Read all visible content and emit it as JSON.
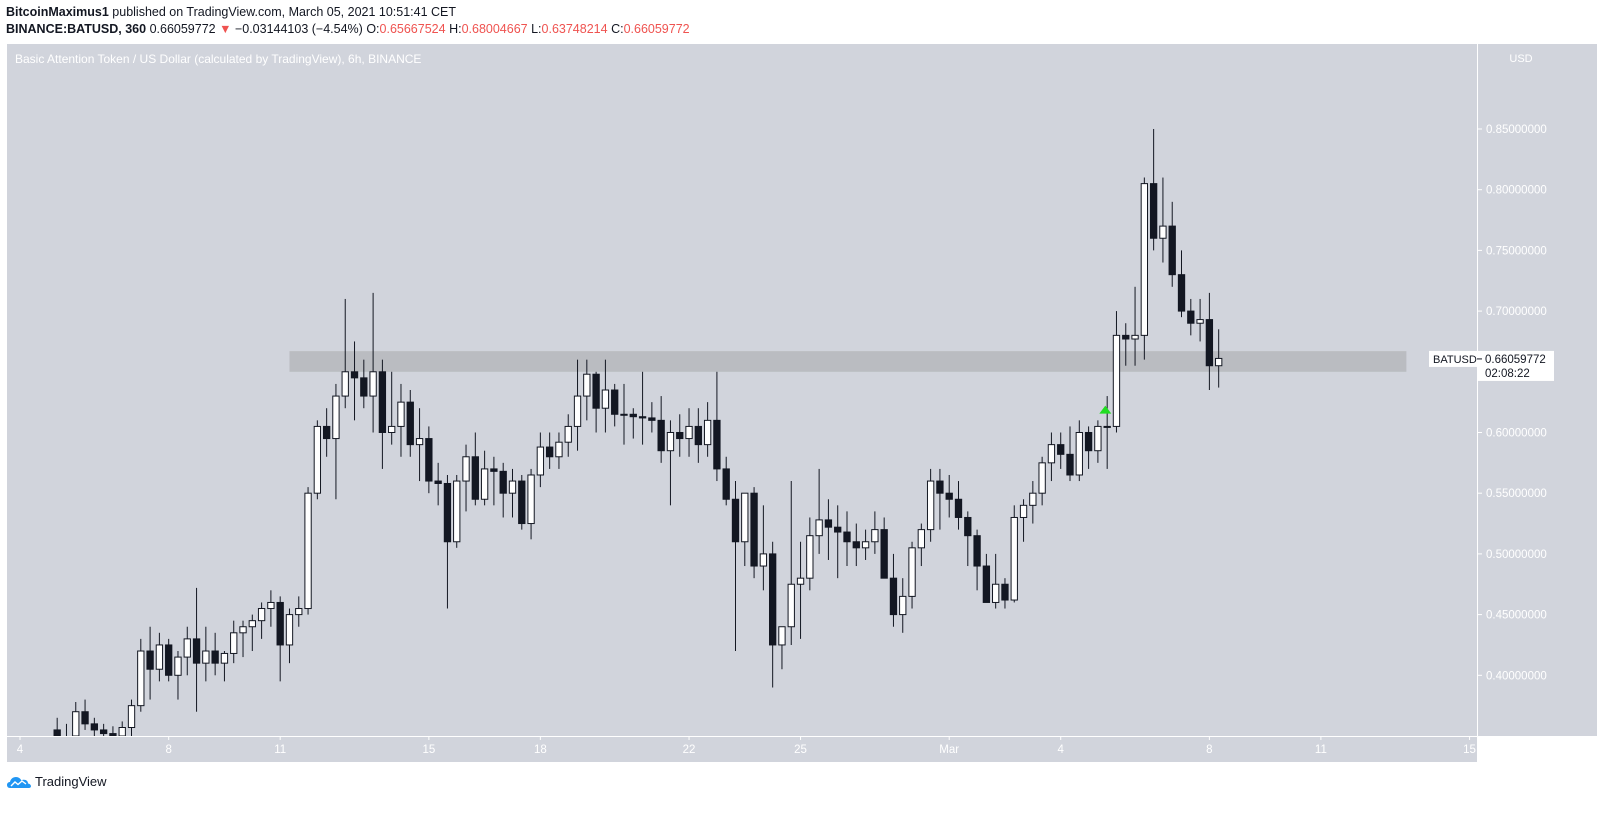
{
  "header": {
    "author": "BitcoinMaximus1",
    "published_text": "published on TradingView.com, March 05, 2021 10:51:41 CET",
    "symbol_full": "BINANCE:BATUSD, 360",
    "last_price": "0.66059772",
    "change_arrow": "▼",
    "change": "−0.03144103 (−4.54%)",
    "open_label": "O:",
    "open": "0.65667524",
    "high_label": "H:",
    "high": "0.68004667",
    "low_label": "L:",
    "low": "0.63748214",
    "close_label": "C:",
    "close": "0.66059772"
  },
  "footer": {
    "brand": "TradingView"
  },
  "colors": {
    "plot_bg": "#d1d4dc",
    "zone": "#b8babf",
    "up_body": "#ffffff",
    "down_body": "#131722",
    "wick": "#131722",
    "marker": "#22dd22",
    "negative": "#ef5350"
  },
  "chart_data": {
    "type": "candlestick",
    "title": "Basic Attention Token / US Dollar (calculated by TradingView), 6h, BINANCE",
    "currency": "USD",
    "timeframe": "6h",
    "ylim": [
      0.35,
      0.92
    ],
    "y_ticks": [
      0.4,
      0.45,
      0.5,
      0.55,
      0.6,
      0.65,
      0.7,
      0.75,
      0.8,
      0.85
    ],
    "y_tick_labels": [
      "0.40000000",
      "0.45000000",
      "0.50000000",
      "0.55000000",
      "0.60000000",
      "0.65000000",
      "0.70000000",
      "0.75000000",
      "0.80000000",
      "0.85000000"
    ],
    "x_ticks": [
      {
        "day": 4,
        "label": "4"
      },
      {
        "day": 8,
        "label": "8"
      },
      {
        "day": 11,
        "label": "11"
      },
      {
        "day": 15,
        "label": "15"
      },
      {
        "day": 18,
        "label": "18"
      },
      {
        "day": 22,
        "label": "22"
      },
      {
        "day": 25,
        "label": "25"
      },
      {
        "day": 29,
        "label": "Mar"
      },
      {
        "day": 32,
        "label": "4"
      },
      {
        "day": 36,
        "label": "8"
      },
      {
        "day": 39,
        "label": "11"
      },
      {
        "day": 43,
        "label": "15"
      }
    ],
    "x_range_days": [
      3.65,
      43.2
    ],
    "first_candle_day": 5.0,
    "candle_interval_days": 0.25,
    "candles": [
      [
        0.355,
        0.365,
        0.345,
        0.35
      ],
      [
        0.35,
        0.36,
        0.34,
        0.345
      ],
      [
        0.345,
        0.378,
        0.34,
        0.37
      ],
      [
        0.37,
        0.38,
        0.355,
        0.36
      ],
      [
        0.36,
        0.365,
        0.345,
        0.355
      ],
      [
        0.355,
        0.36,
        0.348,
        0.352
      ],
      [
        0.352,
        0.358,
        0.345,
        0.35
      ],
      [
        0.35,
        0.362,
        0.34,
        0.357
      ],
      [
        0.357,
        0.38,
        0.35,
        0.375
      ],
      [
        0.375,
        0.43,
        0.37,
        0.42
      ],
      [
        0.42,
        0.44,
        0.38,
        0.405
      ],
      [
        0.405,
        0.435,
        0.395,
        0.425
      ],
      [
        0.425,
        0.43,
        0.395,
        0.4
      ],
      [
        0.4,
        0.42,
        0.38,
        0.415
      ],
      [
        0.415,
        0.44,
        0.4,
        0.43
      ],
      [
        0.43,
        0.472,
        0.37,
        0.41
      ],
      [
        0.41,
        0.44,
        0.395,
        0.42
      ],
      [
        0.42,
        0.435,
        0.4,
        0.41
      ],
      [
        0.41,
        0.42,
        0.395,
        0.418
      ],
      [
        0.418,
        0.445,
        0.41,
        0.435
      ],
      [
        0.435,
        0.445,
        0.415,
        0.44
      ],
      [
        0.44,
        0.45,
        0.42,
        0.445
      ],
      [
        0.445,
        0.46,
        0.43,
        0.455
      ],
      [
        0.455,
        0.47,
        0.44,
        0.46
      ],
      [
        0.46,
        0.465,
        0.395,
        0.425
      ],
      [
        0.425,
        0.455,
        0.41,
        0.45
      ],
      [
        0.45,
        0.465,
        0.44,
        0.455
      ],
      [
        0.455,
        0.555,
        0.45,
        0.55
      ],
      [
        0.55,
        0.61,
        0.545,
        0.605
      ],
      [
        0.605,
        0.62,
        0.58,
        0.595
      ],
      [
        0.595,
        0.64,
        0.545,
        0.63
      ],
      [
        0.63,
        0.71,
        0.62,
        0.65
      ],
      [
        0.65,
        0.675,
        0.61,
        0.645
      ],
      [
        0.645,
        0.66,
        0.62,
        0.63
      ],
      [
        0.63,
        0.715,
        0.6,
        0.65
      ],
      [
        0.65,
        0.66,
        0.57,
        0.6
      ],
      [
        0.6,
        0.65,
        0.59,
        0.605
      ],
      [
        0.605,
        0.64,
        0.58,
        0.625
      ],
      [
        0.625,
        0.635,
        0.58,
        0.59
      ],
      [
        0.59,
        0.62,
        0.56,
        0.595
      ],
      [
        0.595,
        0.605,
        0.55,
        0.56
      ],
      [
        0.56,
        0.575,
        0.54,
        0.558
      ],
      [
        0.558,
        0.565,
        0.455,
        0.51
      ],
      [
        0.51,
        0.565,
        0.505,
        0.56
      ],
      [
        0.56,
        0.59,
        0.535,
        0.58
      ],
      [
        0.58,
        0.6,
        0.54,
        0.545
      ],
      [
        0.545,
        0.585,
        0.54,
        0.57
      ],
      [
        0.57,
        0.58,
        0.54,
        0.568
      ],
      [
        0.568,
        0.575,
        0.53,
        0.55
      ],
      [
        0.55,
        0.57,
        0.53,
        0.56
      ],
      [
        0.56,
        0.565,
        0.52,
        0.525
      ],
      [
        0.525,
        0.57,
        0.512,
        0.565
      ],
      [
        0.565,
        0.6,
        0.555,
        0.588
      ],
      [
        0.588,
        0.6,
        0.57,
        0.58
      ],
      [
        0.58,
        0.6,
        0.57,
        0.592
      ],
      [
        0.592,
        0.615,
        0.58,
        0.605
      ],
      [
        0.605,
        0.66,
        0.585,
        0.63
      ],
      [
        0.63,
        0.66,
        0.61,
        0.648
      ],
      [
        0.648,
        0.65,
        0.6,
        0.62
      ],
      [
        0.62,
        0.66,
        0.6,
        0.635
      ],
      [
        0.635,
        0.64,
        0.605,
        0.615
      ],
      [
        0.615,
        0.64,
        0.59,
        0.615
      ],
      [
        0.615,
        0.62,
        0.595,
        0.613
      ],
      [
        0.613,
        0.65,
        0.59,
        0.612
      ],
      [
        0.612,
        0.625,
        0.6,
        0.61
      ],
      [
        0.61,
        0.63,
        0.575,
        0.585
      ],
      [
        0.585,
        0.61,
        0.54,
        0.6
      ],
      [
        0.6,
        0.615,
        0.58,
        0.595
      ],
      [
        0.595,
        0.62,
        0.58,
        0.605
      ],
      [
        0.605,
        0.62,
        0.575,
        0.59
      ],
      [
        0.59,
        0.625,
        0.58,
        0.61
      ],
      [
        0.61,
        0.65,
        0.56,
        0.57
      ],
      [
        0.57,
        0.58,
        0.54,
        0.545
      ],
      [
        0.545,
        0.56,
        0.42,
        0.51
      ],
      [
        0.51,
        0.55,
        0.49,
        0.55
      ],
      [
        0.55,
        0.555,
        0.48,
        0.49
      ],
      [
        0.49,
        0.54,
        0.47,
        0.5
      ],
      [
        0.5,
        0.51,
        0.39,
        0.425
      ],
      [
        0.425,
        0.44,
        0.405,
        0.44
      ],
      [
        0.44,
        0.56,
        0.425,
        0.475
      ],
      [
        0.475,
        0.51,
        0.43,
        0.48
      ],
      [
        0.48,
        0.53,
        0.47,
        0.515
      ],
      [
        0.515,
        0.57,
        0.5,
        0.528
      ],
      [
        0.528,
        0.545,
        0.495,
        0.522
      ],
      [
        0.522,
        0.54,
        0.48,
        0.518
      ],
      [
        0.518,
        0.535,
        0.49,
        0.51
      ],
      [
        0.51,
        0.525,
        0.49,
        0.505
      ],
      [
        0.505,
        0.52,
        0.495,
        0.51
      ],
      [
        0.51,
        0.535,
        0.5,
        0.52
      ],
      [
        0.52,
        0.53,
        0.48,
        0.48
      ],
      [
        0.48,
        0.5,
        0.44,
        0.45
      ],
      [
        0.45,
        0.48,
        0.435,
        0.465
      ],
      [
        0.465,
        0.51,
        0.455,
        0.505
      ],
      [
        0.505,
        0.525,
        0.49,
        0.52
      ],
      [
        0.52,
        0.57,
        0.51,
        0.56
      ],
      [
        0.56,
        0.57,
        0.52,
        0.55
      ],
      [
        0.55,
        0.565,
        0.53,
        0.545
      ],
      [
        0.545,
        0.56,
        0.52,
        0.53
      ],
      [
        0.53,
        0.535,
        0.49,
        0.515
      ],
      [
        0.515,
        0.52,
        0.47,
        0.49
      ],
      [
        0.49,
        0.5,
        0.46,
        0.46
      ],
      [
        0.46,
        0.5,
        0.455,
        0.475
      ],
      [
        0.475,
        0.48,
        0.455,
        0.462
      ],
      [
        0.462,
        0.54,
        0.46,
        0.53
      ],
      [
        0.53,
        0.545,
        0.51,
        0.54
      ],
      [
        0.54,
        0.56,
        0.525,
        0.55
      ],
      [
        0.55,
        0.58,
        0.54,
        0.575
      ],
      [
        0.575,
        0.6,
        0.56,
        0.59
      ],
      [
        0.59,
        0.6,
        0.57,
        0.582
      ],
      [
        0.582,
        0.605,
        0.56,
        0.565
      ],
      [
        0.565,
        0.61,
        0.56,
        0.6
      ],
      [
        0.6,
        0.605,
        0.57,
        0.585
      ],
      [
        0.585,
        0.61,
        0.575,
        0.605
      ],
      [
        0.605,
        0.63,
        0.57,
        0.605
      ],
      [
        0.605,
        0.7,
        0.6,
        0.68
      ],
      [
        0.68,
        0.69,
        0.655,
        0.677
      ],
      [
        0.677,
        0.72,
        0.655,
        0.68
      ],
      [
        0.68,
        0.81,
        0.66,
        0.805
      ],
      [
        0.805,
        0.85,
        0.75,
        0.76
      ],
      [
        0.76,
        0.81,
        0.74,
        0.77
      ],
      [
        0.77,
        0.79,
        0.72,
        0.73
      ],
      [
        0.73,
        0.75,
        0.695,
        0.7
      ],
      [
        0.7,
        0.71,
        0.68,
        0.69
      ],
      [
        0.69,
        0.71,
        0.675,
        0.693
      ],
      [
        0.693,
        0.715,
        0.635,
        0.655
      ],
      [
        0.655,
        0.685,
        0.637,
        0.661
      ]
    ],
    "support_zone": {
      "low": 0.65,
      "high": 0.667,
      "start_day": 11.25,
      "end_day": 41.3
    },
    "marker": {
      "type": "triangle-up",
      "day": 33.2,
      "price": 0.618
    },
    "price_label": {
      "symbol": "BATUSD",
      "price": "0.66059772",
      "countdown": "02:08:22"
    }
  }
}
